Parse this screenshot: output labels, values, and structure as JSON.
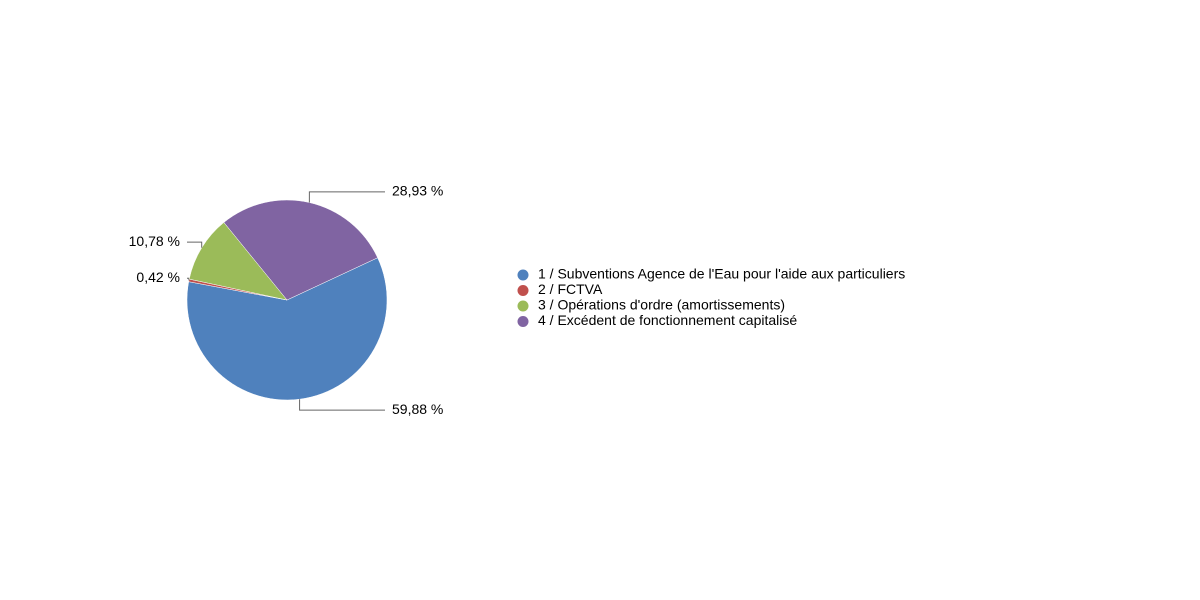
{
  "chart_data": {
    "type": "pie",
    "categories": [
      "1 / Subventions Agence de l'Eau pour l'aide aux particuliers",
      "2 / FCTVA",
      "3 / Opérations d'ordre (amortissements)",
      "4 / Excédent de fonctionnement capitalisé"
    ],
    "values": [
      59.88,
      0.42,
      10.78,
      28.93
    ],
    "value_labels": [
      "59,88 %",
      "0,42 %",
      "10,78 %",
      "28,93 %"
    ],
    "colors": [
      "#4f81bd",
      "#c0504d",
      "#9bbb59",
      "#8064a2"
    ],
    "legend": "right"
  }
}
